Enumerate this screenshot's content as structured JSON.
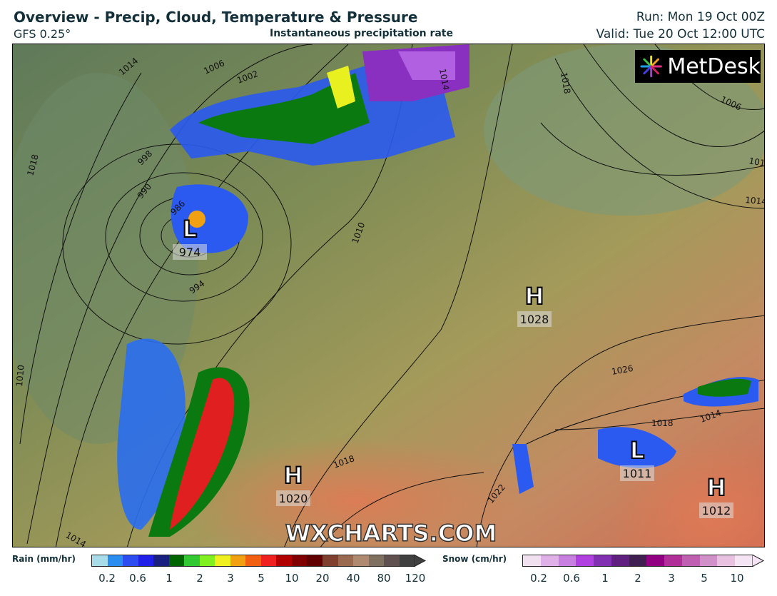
{
  "header": {
    "title": "Overview - Precip, Cloud, Temperature & Pressure",
    "model": "GFS 0.25°",
    "subtitle": "Instantaneous precipitation rate",
    "run": "Run: Mon 19 Oct 00Z",
    "valid": "Valid: Tue 20 Oct 12:00 UTC"
  },
  "logo": {
    "text": "MetDesk"
  },
  "watermark": "WXCHARTS.COM",
  "pressure_centers": [
    {
      "type": "L",
      "value": "974"
    },
    {
      "type": "H",
      "value": "1028"
    },
    {
      "type": "L",
      "value": "1011"
    },
    {
      "type": "H",
      "value": "1012"
    },
    {
      "type": "H",
      "value": "1020"
    }
  ],
  "isobar_labels": [
    "1014",
    "1006",
    "1002",
    "998",
    "1018",
    "990",
    "986",
    "994",
    "1010",
    "1010",
    "1014",
    "1018",
    "1022",
    "1026",
    "1018",
    "1014",
    "1010",
    "1014",
    "1006",
    "1018",
    "1014"
  ],
  "legend": {
    "rain": {
      "label": "Rain (mm/hr)",
      "colors": [
        "#a8dce8",
        "#2a8ef0",
        "#2d4df0",
        "#2020e8",
        "#1a2080",
        "#006400",
        "#32c832",
        "#80f020",
        "#f0f020",
        "#f0a010",
        "#f06010",
        "#f02020",
        "#b00000",
        "#800000",
        "#600000",
        "#804030",
        "#9a6a50",
        "#b08a70",
        "#807060",
        "#605050",
        "#404040"
      ],
      "ticks": [
        "0.2",
        "0.6",
        "1",
        "2",
        "3",
        "5",
        "10",
        "20",
        "40",
        "80",
        "120"
      ]
    },
    "snow": {
      "label": "Snow (cm/hr)",
      "colors": [
        "#f0e0f0",
        "#e0b0e8",
        "#c880e0",
        "#b040e0",
        "#8030b0",
        "#602080",
        "#402050",
        "#900080",
        "#b03098",
        "#c060b0",
        "#d090c8",
        "#e8c0e0",
        "#f4e4f4"
      ],
      "ticks": [
        "0.2",
        "0.6",
        "1",
        "2",
        "3",
        "5",
        "10"
      ]
    }
  }
}
